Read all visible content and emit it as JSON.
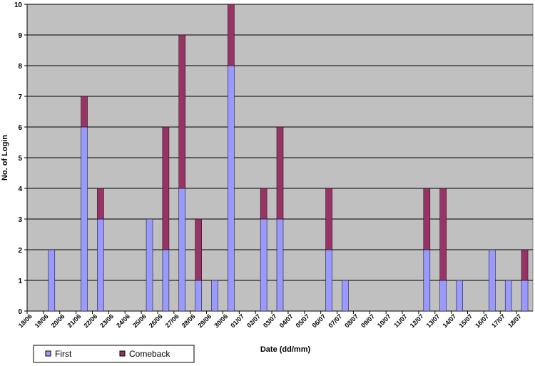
{
  "chart_data": {
    "type": "stacked-bar",
    "x_label": "Date (dd/mm)",
    "y_label": "No. of Login",
    "categories": [
      "18/06",
      "19/06",
      "20/06",
      "21/06",
      "22/06",
      "23/06",
      "24/06",
      "25/06",
      "26/06",
      "27/06",
      "28/06",
      "29/06",
      "30/06",
      "01/07",
      "02/07",
      "03/07",
      "04/07",
      "05/07",
      "06/07",
      "07/07",
      "08/07",
      "09/07",
      "10/07",
      "11/07",
      "12/07",
      "13/07",
      "14/07",
      "15/07",
      "16/07",
      "17/07",
      "18/07"
    ],
    "series": [
      {
        "name": "First",
        "color": "#9999ff",
        "values": [
          0,
          2,
          0,
          6,
          3,
          0,
          0,
          3,
          2,
          4,
          1,
          1,
          8,
          0,
          3,
          3,
          0,
          0,
          2,
          1,
          0,
          0,
          0,
          0,
          2,
          1,
          1,
          0,
          2,
          1,
          1
        ]
      },
      {
        "name": "Comeback",
        "color": "#993366",
        "values": [
          0,
          0,
          0,
          1,
          1,
          0,
          0,
          0,
          4,
          5,
          2,
          0,
          2,
          0,
          1,
          3,
          0,
          0,
          2,
          0,
          0,
          0,
          0,
          0,
          2,
          3,
          0,
          0,
          0,
          0,
          1
        ]
      }
    ],
    "ylim": [
      0,
      10
    ],
    "yticks": [
      0,
      1,
      2,
      3,
      4,
      5,
      6,
      7,
      8,
      9,
      10
    ],
    "grid": true,
    "legend": "bottom-left"
  }
}
